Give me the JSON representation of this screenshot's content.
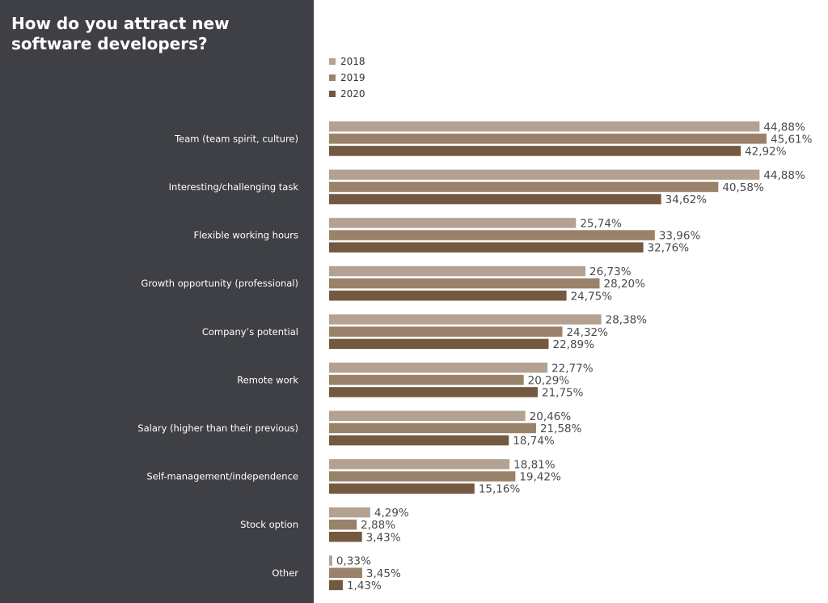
{
  "title": "How do you attract new software developers?",
  "colors": {
    "sidebar": "#3f4046",
    "2018": "#b3a292",
    "2019": "#9a8169",
    "2020": "#73593f"
  },
  "chart_data": {
    "type": "bar",
    "orientation": "horizontal",
    "title": "How do you attract new software developers?",
    "xlabel": "",
    "ylabel": "",
    "xlim": [
      0,
      45.61
    ],
    "grid": false,
    "legend_position": "top-left",
    "categories": [
      "Team (team spirit, culture)",
      "Interesting/challenging task",
      "Flexible working hours",
      "Growth opportunity (professional)",
      "Company’s potential",
      "Remote work",
      "Salary (higher than their previous)",
      "Self-management/independence",
      "Stock option",
      "Other"
    ],
    "series": [
      {
        "name": "2018",
        "color": "#b3a292",
        "values": [
          44.88,
          44.88,
          25.74,
          26.73,
          28.38,
          22.77,
          20.46,
          18.81,
          4.29,
          0.33
        ],
        "labels": [
          "44,88%",
          "44,88%",
          "25,74%",
          "26,73%",
          "28,38%",
          "22,77%",
          "20,46%",
          "18,81%",
          "4,29%",
          "0,33%"
        ]
      },
      {
        "name": "2019",
        "color": "#9a8169",
        "values": [
          45.61,
          40.58,
          33.96,
          28.2,
          24.32,
          20.29,
          21.58,
          19.42,
          2.88,
          3.45
        ],
        "labels": [
          "45,61%",
          "40,58%",
          "33,96%",
          "28,20%",
          "24,32%",
          "20,29%",
          "21,58%",
          "19,42%",
          "2,88%",
          "3,45%"
        ]
      },
      {
        "name": "2020",
        "color": "#73593f",
        "values": [
          42.92,
          34.62,
          32.76,
          24.75,
          22.89,
          21.75,
          18.74,
          15.16,
          3.43,
          1.43
        ],
        "labels": [
          "42,92%",
          "34,62%",
          "32,76%",
          "24,75%",
          "22,89%",
          "21,75%",
          "18,74%",
          "15,16%",
          "3,43%",
          "1,43%"
        ]
      }
    ]
  }
}
